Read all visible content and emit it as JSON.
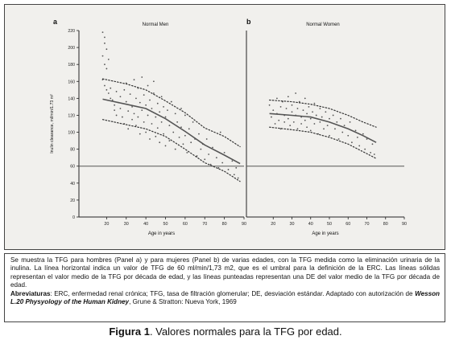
{
  "chart_data": [
    {
      "type": "scatter",
      "panel_letter": "a",
      "title": "Normal Men",
      "xlabel": "Age in years",
      "ylabel": "Inulin clearance, ml/min/1.73 m²",
      "xlim": [
        10,
        90
      ],
      "ylim": [
        0,
        220
      ],
      "xticks": [
        "20",
        "30",
        "40",
        "50",
        "60",
        "70",
        "80",
        "90"
      ],
      "yticks": [
        "0",
        "20",
        "40",
        "60",
        "80",
        "100",
        "120",
        "140",
        "160",
        "180",
        "200",
        "220"
      ],
      "threshold_line": 60,
      "mean_line": {
        "x": [
          18,
          30,
          40,
          50,
          60,
          70,
          80,
          88
        ],
        "y": [
          139,
          133,
          128,
          116,
          101,
          85,
          73,
          63
        ]
      },
      "sd_upper": {
        "x": [
          18,
          30,
          40,
          50,
          60,
          70,
          80,
          88
        ],
        "y": [
          163,
          157,
          150,
          137,
          123,
          105,
          95,
          83
        ]
      },
      "sd_lower": {
        "x": [
          18,
          30,
          40,
          50,
          60,
          70,
          80,
          88
        ],
        "y": [
          115,
          109,
          104,
          95,
          80,
          64,
          54,
          42
        ]
      },
      "points": [
        [
          18,
          218
        ],
        [
          19,
          212
        ],
        [
          19,
          205
        ],
        [
          20,
          198
        ],
        [
          18,
          190
        ],
        [
          21,
          186
        ],
        [
          19,
          180
        ],
        [
          20,
          175
        ],
        [
          18,
          162
        ],
        [
          19,
          155
        ],
        [
          20,
          150
        ],
        [
          21,
          146
        ],
        [
          22,
          152
        ],
        [
          22,
          140
        ],
        [
          23,
          138
        ],
        [
          24,
          132
        ],
        [
          24,
          126
        ],
        [
          25,
          148
        ],
        [
          25,
          120
        ],
        [
          26,
          135
        ],
        [
          27,
          142
        ],
        [
          27,
          128
        ],
        [
          28,
          118
        ],
        [
          29,
          150
        ],
        [
          29,
          110
        ],
        [
          30,
          158
        ],
        [
          30,
          136
        ],
        [
          31,
          125
        ],
        [
          31,
          104
        ],
        [
          32,
          145
        ],
        [
          33,
          130
        ],
        [
          33,
          115
        ],
        [
          34,
          162
        ],
        [
          34,
          122
        ],
        [
          35,
          140
        ],
        [
          35,
          108
        ],
        [
          36,
          152
        ],
        [
          36,
          118
        ],
        [
          37,
          135
        ],
        [
          37,
          98
        ],
        [
          38,
          165
        ],
        [
          38,
          126
        ],
        [
          39,
          144
        ],
        [
          39,
          112
        ],
        [
          40,
          132
        ],
        [
          40,
          100
        ],
        [
          41,
          155
        ],
        [
          41,
          120
        ],
        [
          42,
          138
        ],
        [
          42,
          92
        ],
        [
          43,
          128
        ],
        [
          43,
          110
        ],
        [
          44,
          160
        ],
        [
          44,
          146
        ],
        [
          45,
          118
        ],
        [
          45,
          95
        ],
        [
          46,
          134
        ],
        [
          46,
          105
        ],
        [
          47,
          124
        ],
        [
          47,
          88
        ],
        [
          48,
          142
        ],
        [
          48,
          112
        ],
        [
          49,
          130
        ],
        [
          49,
          98
        ],
        [
          50,
          118
        ],
        [
          50,
          84
        ],
        [
          51,
          126
        ],
        [
          52,
          108
        ],
        [
          52,
          90
        ],
        [
          53,
          136
        ],
        [
          54,
          100
        ],
        [
          55,
          122
        ],
        [
          55,
          80
        ],
        [
          56,
          112
        ],
        [
          57,
          94
        ],
        [
          58,
          128
        ],
        [
          58,
          106
        ],
        [
          59,
          86
        ],
        [
          60,
          120
        ],
        [
          60,
          96
        ],
        [
          61,
          76
        ],
        [
          62,
          104
        ],
        [
          63,
          88
        ],
        [
          64,
          112
        ],
        [
          65,
          92
        ],
        [
          66,
          72
        ],
        [
          67,
          98
        ],
        [
          68,
          80
        ],
        [
          69,
          86
        ],
        [
          70,
          68
        ],
        [
          71,
          92
        ],
        [
          72,
          74
        ],
        [
          73,
          62
        ],
        [
          74,
          82
        ],
        [
          76,
          70
        ],
        [
          77,
          58
        ],
        [
          78,
          100
        ],
        [
          79,
          64
        ],
        [
          80,
          76
        ],
        [
          82,
          56
        ],
        [
          84,
          66
        ],
        [
          85,
          50
        ],
        [
          86,
          58
        ],
        [
          87,
          46
        ]
      ]
    },
    {
      "type": "scatter",
      "panel_letter": "b",
      "title": "Normal Women",
      "xlabel": "Age in years",
      "ylabel": "",
      "xlim": [
        10,
        90
      ],
      "ylim": [
        0,
        220
      ],
      "xticks": [
        "20",
        "30",
        "40",
        "50",
        "60",
        "70",
        "80",
        "90"
      ],
      "threshold_line": 60,
      "mean_line": {
        "x": [
          18,
          30,
          40,
          50,
          60,
          68,
          75
        ],
        "y": [
          122,
          120,
          118,
          112,
          104,
          96,
          88
        ]
      },
      "sd_upper": {
        "x": [
          18,
          30,
          40,
          50,
          60,
          68,
          75
        ],
        "y": [
          138,
          136,
          133,
          128,
          120,
          112,
          106
        ]
      },
      "sd_lower": {
        "x": [
          18,
          30,
          40,
          50,
          60,
          68,
          75
        ],
        "y": [
          106,
          103,
          100,
          94,
          86,
          77,
          69
        ]
      },
      "points": [
        [
          18,
          132
        ],
        [
          19,
          118
        ],
        [
          20,
          126
        ],
        [
          21,
          110
        ],
        [
          22,
          140
        ],
        [
          22,
          122
        ],
        [
          23,
          114
        ],
        [
          24,
          130
        ],
        [
          24,
          104
        ],
        [
          25,
          136
        ],
        [
          26,
          120
        ],
        [
          26,
          112
        ],
        [
          27,
          128
        ],
        [
          28,
          142
        ],
        [
          28,
          116
        ],
        [
          29,
          108
        ],
        [
          30,
          124
        ],
        [
          30,
          132
        ],
        [
          31,
          112
        ],
        [
          32,
          146
        ],
        [
          32,
          120
        ],
        [
          33,
          128
        ],
        [
          33,
          104
        ],
        [
          34,
          136
        ],
        [
          35,
          118
        ],
        [
          35,
          110
        ],
        [
          36,
          126
        ],
        [
          37,
          140
        ],
        [
          37,
          114
        ],
        [
          38,
          106
        ],
        [
          38,
          122
        ],
        [
          39,
          130
        ],
        [
          40,
          116
        ],
        [
          40,
          102
        ],
        [
          41,
          124
        ],
        [
          42,
          134
        ],
        [
          42,
          110
        ],
        [
          43,
          120
        ],
        [
          44,
          98
        ],
        [
          45,
          128
        ],
        [
          45,
          112
        ],
        [
          46,
          118
        ],
        [
          47,
          104
        ],
        [
          48,
          124
        ],
        [
          49,
          108
        ],
        [
          50,
          116
        ],
        [
          50,
          96
        ],
        [
          52,
          120
        ],
        [
          53,
          104
        ],
        [
          54,
          112
        ],
        [
          55,
          92
        ],
        [
          56,
          116
        ],
        [
          57,
          100
        ],
        [
          58,
          108
        ],
        [
          60,
          96
        ],
        [
          61,
          112
        ],
        [
          62,
          88
        ],
        [
          64,
          102
        ],
        [
          65,
          94
        ],
        [
          66,
          84
        ],
        [
          68,
          98
        ],
        [
          69,
          80
        ],
        [
          70,
          92
        ],
        [
          72,
          76
        ],
        [
          73,
          86
        ],
        [
          74,
          74
        ]
      ]
    }
  ],
  "caption": {
    "line1": "Se muestra la TFG para hombres (Panel a) y para mujeres (Panel b) de varias edades, con la TFG  medida como la eliminación urinaria de la inulina. La línea horizontal indica un valor de TFG de 60 ml/min/1,73 m2, que es el umbral para la definición de la ERC. Las líneas sólidas representan el valor medio de la TFG por década de edad, y las líneas punteadas representan una DE del valor medio de la TFG por década de edad.",
    "abbrev_label": "Abreviaturas",
    "abbrev_text": ": ERC, enfermedad renal crónica; TFG, tasa de filtración glomerular; DE, desviación estándar. Adaptado con autorización de ",
    "source_title": "Wesson L.20 Physyology of the Human Kidney",
    "source_rest": ", Grune & Stratton: Nueva York, 1969"
  },
  "figure_title": {
    "label": "Figura 1",
    "text": ". Valores normales para la TFG por edad."
  }
}
